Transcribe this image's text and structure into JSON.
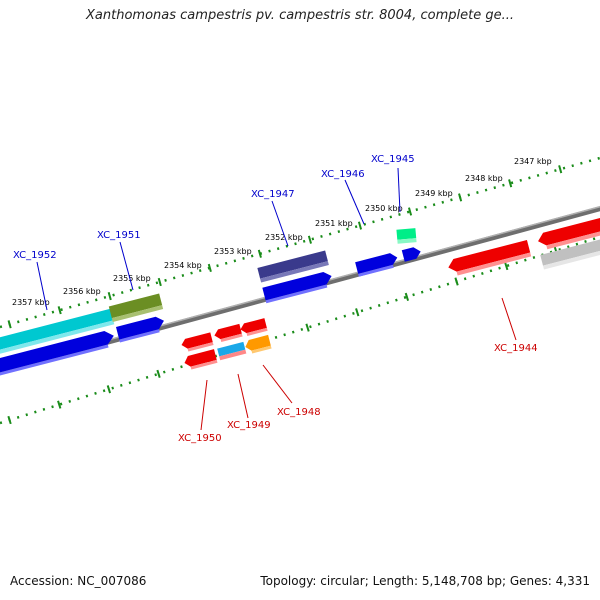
{
  "title": "Xanthomonas campestris pv. campestris str. 8004, complete ge...",
  "footer": {
    "accession_label": "Accession:",
    "accession_value": "NC_007086",
    "topology_label": "Topology:",
    "topology_value": "circular",
    "length_label": "Length:",
    "length_value": "5,148,708 bp",
    "genes_label": "Genes:",
    "genes_value": "4,331"
  },
  "scale_labels": [
    "2347 kbp",
    "2348 kbp",
    "2349 kbp",
    "2350 kbp",
    "2351 kbp",
    "2352 kbp",
    "2353 kbp",
    "2354 kbp",
    "2355 kbp",
    "2356 kbp",
    "2357 kbp"
  ],
  "gene_labels": [
    {
      "text": "XC_1945",
      "color": "#0000cc"
    },
    {
      "text": "XC_1946",
      "color": "#0000cc"
    },
    {
      "text": "XC_1947",
      "color": "#0000cc"
    },
    {
      "text": "XC_1951",
      "color": "#0000cc"
    },
    {
      "text": "XC_1952",
      "color": "#0000cc"
    },
    {
      "text": "XC_1944",
      "color": "#cc0000"
    },
    {
      "text": "XC_1948",
      "color": "#cc0000"
    },
    {
      "text": "XC_1949",
      "color": "#cc0000"
    },
    {
      "text": "XC_1950",
      "color": "#cc0000"
    }
  ],
  "colors": {
    "backbone": "#808080",
    "scale_ticks": "#008000",
    "forward_gene": "#0000ee",
    "reverse_gene": "#ee0000",
    "cyan_gene": "#00c8d0",
    "olive_gene": "#6b8e23",
    "navy_gene": "#3a3a8c",
    "green_gene": "#00ee88",
    "orange_gene": "#ff9900",
    "grey_gene": "#c0c0c0"
  }
}
